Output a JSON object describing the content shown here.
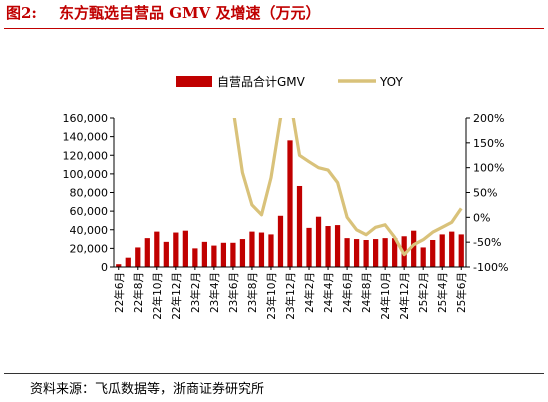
{
  "figure": {
    "label": "图2:",
    "title": "东方甄选自营品 GMV 及增速（万元）",
    "source": "资料来源：飞瓜数据等，浙商证券研究所"
  },
  "colors": {
    "bar": "#c00000",
    "line": "#d9c27a",
    "title": "#c00000"
  },
  "chart_data": {
    "type": "bar",
    "legend": {
      "placement": "top",
      "bar_label": "自营品合计GMV",
      "line_label": "YOY"
    },
    "left_axis": {
      "min": 0,
      "max": 160000,
      "step": 20000,
      "ticks": [
        "0",
        "20,000",
        "40,000",
        "60,000",
        "80,000",
        "100,000",
        "120,000",
        "140,000",
        "160,000"
      ]
    },
    "right_axis": {
      "min": -100,
      "max": 200,
      "step": 50,
      "ticks": [
        "-100%",
        "-50%",
        "0%",
        "50%",
        "100%",
        "150%",
        "200%"
      ]
    },
    "x_labels": [
      "22年6月",
      "22年8月",
      "22年10月",
      "22年12月",
      "23年2月",
      "23年4月",
      "23年6月",
      "23年8月",
      "23年10月",
      "23年12月",
      "24年2月",
      "24年4月",
      "24年6月",
      "24年8月",
      "24年10月",
      "24年12月",
      "25年2月",
      "25年4月",
      "25年6月"
    ],
    "categories": [
      "22-06",
      "22-07",
      "22-08",
      "22-09",
      "22-10",
      "22-11",
      "22-12",
      "23-01",
      "23-02",
      "23-03",
      "23-04",
      "23-05",
      "23-06",
      "23-07",
      "23-08",
      "23-09",
      "23-10",
      "23-11",
      "23-12",
      "24-01",
      "24-02",
      "24-03",
      "24-04",
      "24-05",
      "24-06",
      "24-07",
      "24-08",
      "24-09",
      "24-10",
      "24-11",
      "24-12",
      "25-01",
      "25-02",
      "25-03",
      "25-04",
      "25-05",
      "25-06"
    ],
    "series": [
      {
        "name": "自营品合计GMV",
        "type": "bar",
        "values": [
          3000,
          10000,
          21000,
          31000,
          38000,
          27000,
          37000,
          39000,
          20000,
          27000,
          23000,
          26000,
          26000,
          30000,
          38000,
          37000,
          35000,
          55000,
          136000,
          87000,
          42000,
          54000,
          44000,
          45000,
          31000,
          30000,
          29000,
          30000,
          31000,
          31000,
          33000,
          39000,
          21000,
          29000,
          35000,
          38000,
          35000
        ]
      },
      {
        "name": "YOY",
        "type": "line",
        "values": [
          null,
          null,
          null,
          null,
          null,
          null,
          null,
          null,
          null,
          null,
          null,
          null,
          220,
          90,
          25,
          5,
          80,
          200,
          240,
          125,
          112,
          100,
          95,
          70,
          0,
          -25,
          -35,
          -20,
          -15,
          -40,
          -75,
          -55,
          -45,
          -30,
          -20,
          -10,
          18
        ]
      }
    ]
  }
}
